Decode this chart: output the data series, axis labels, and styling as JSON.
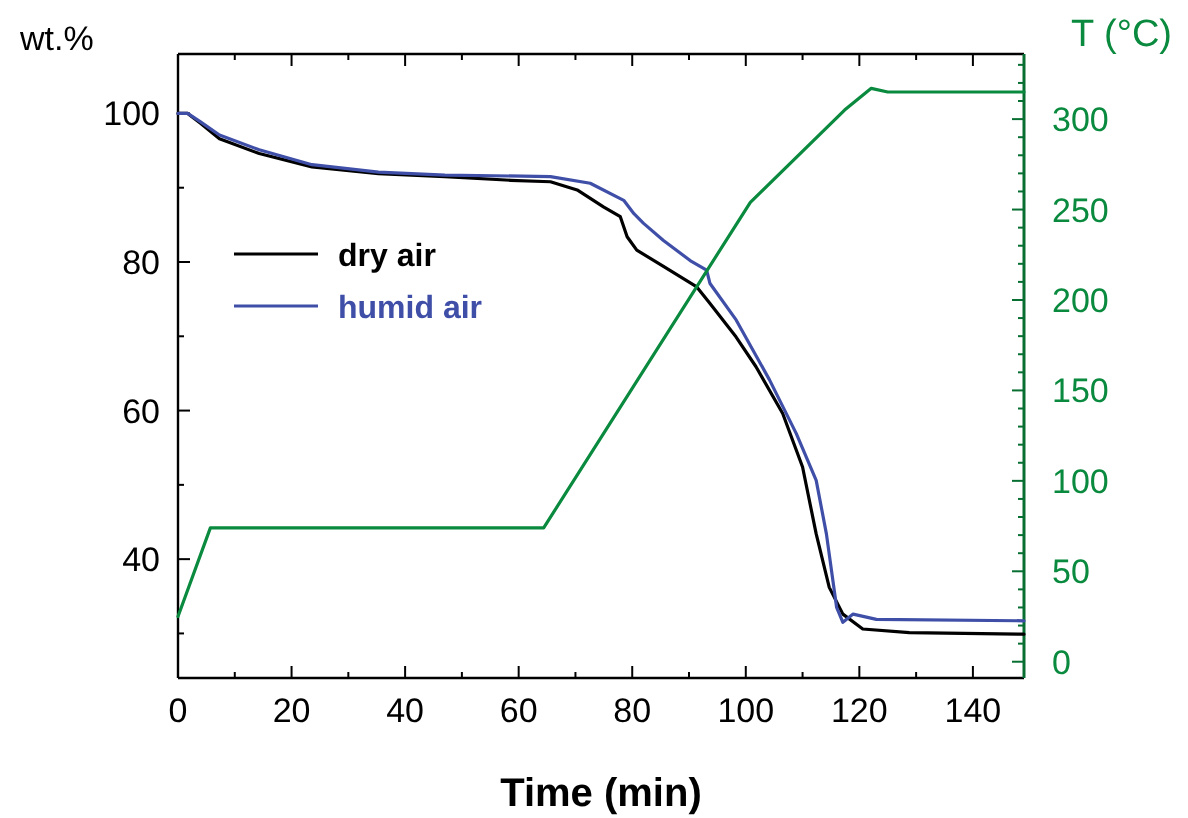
{
  "chart_data": {
    "type": "line",
    "xlabel": "Time (min)",
    "ylabel": "wt.%",
    "y2label": "T (°C)",
    "xlim": [
      0,
      149
    ],
    "ylim": [
      24,
      108
    ],
    "y2lim": [
      -9,
      336
    ],
    "xticks": [
      0,
      {
        "value": 10,
        "label": null
      },
      20,
      {
        "value": 30,
        "label": null
      },
      40,
      {
        "value": 50,
        "label": null
      },
      60,
      {
        "value": 70,
        "label": null
      },
      80,
      {
        "value": 90,
        "label": null
      },
      100,
      {
        "value": 110,
        "label": null
      },
      120,
      {
        "value": 130,
        "label": null
      },
      140
    ],
    "yticks": [
      {
        "value": 30,
        "label": null
      },
      40,
      {
        "value": 50,
        "label": null
      },
      60,
      {
        "value": 70,
        "label": null
      },
      80,
      {
        "value": 90,
        "label": null
      },
      100
    ],
    "y2ticks": [
      0,
      {
        "value": 10,
        "label": null
      },
      {
        "value": 20,
        "label": null
      },
      {
        "value": 30,
        "label": null
      },
      {
        "value": 40,
        "label": null
      },
      50,
      {
        "value": 60,
        "label": null
      },
      {
        "value": 70,
        "label": null
      },
      {
        "value": 80,
        "label": null
      },
      {
        "value": 90,
        "label": null
      },
      100,
      {
        "value": 110,
        "label": null
      },
      {
        "value": 120,
        "label": null
      },
      {
        "value": 130,
        "label": null
      },
      {
        "value": 140,
        "label": null
      },
      150,
      {
        "value": 160,
        "label": null
      },
      {
        "value": 170,
        "label": null
      },
      {
        "value": 180,
        "label": null
      },
      {
        "value": 190,
        "label": null
      },
      200,
      {
        "value": 210,
        "label": null
      },
      {
        "value": 220,
        "label": null
      },
      {
        "value": 230,
        "label": null
      },
      {
        "value": 240,
        "label": null
      },
      250,
      {
        "value": 260,
        "label": null
      },
      {
        "value": 270,
        "label": null
      },
      {
        "value": 280,
        "label": null
      },
      {
        "value": 290,
        "label": null
      },
      300,
      {
        "value": 310,
        "label": null
      },
      {
        "value": 320,
        "label": null
      },
      {
        "value": 330,
        "label": null
      }
    ],
    "legend": "left",
    "series": [
      {
        "name": "dry air",
        "color": "#000000",
        "x": [
          0,
          1.7,
          3.9,
          7.3,
          14.3,
          23.6,
          35.3,
          47,
          58.6,
          65.6,
          70.3,
          75,
          77.9,
          79.1,
          80.8,
          85.5,
          91.3,
          93.7,
          98.3,
          101.8,
          106.5,
          110,
          112.4,
          114.7,
          117.1,
          120.6,
          128.8,
          149
        ],
        "values": [
          100,
          100,
          98.7,
          96.6,
          94.6,
          92.8,
          91.9,
          91.5,
          91,
          90.8,
          89.7,
          87.4,
          86.1,
          83.4,
          81.6,
          79.4,
          76.7,
          74.4,
          69.9,
          65.9,
          59.6,
          52.4,
          43.4,
          36.2,
          32.6,
          30.6,
          30.1,
          29.9
        ]
      },
      {
        "name": "humid air",
        "color": "#3f4fa8",
        "x": [
          0,
          1.7,
          3.9,
          7.3,
          14.3,
          23.6,
          35.3,
          47,
          65.6,
          72.6,
          78.5,
          80.3,
          82,
          85.5,
          90.2,
          93.1,
          93.7,
          98.3,
          104.2,
          108.9,
          112.4,
          114.2,
          116,
          117.1,
          118.9,
          123,
          149
        ],
        "values": [
          100,
          100,
          98.9,
          97.1,
          95.1,
          93.1,
          92.1,
          91.7,
          91.5,
          90.6,
          88.3,
          86.5,
          85.2,
          82.9,
          80.2,
          78.9,
          77.1,
          72.2,
          64.1,
          56.9,
          50.6,
          43.4,
          33.5,
          31.5,
          32.6,
          31.9,
          31.7
        ]
      },
      {
        "color": "#0a8a3e",
        "axis": "y2",
        "x": [
          0,
          5.7,
          64.4,
          100.8,
          117.4,
          122.1,
          125,
          149
        ],
        "values": [
          25,
          74,
          74,
          254,
          305,
          317,
          315,
          315
        ]
      }
    ]
  }
}
